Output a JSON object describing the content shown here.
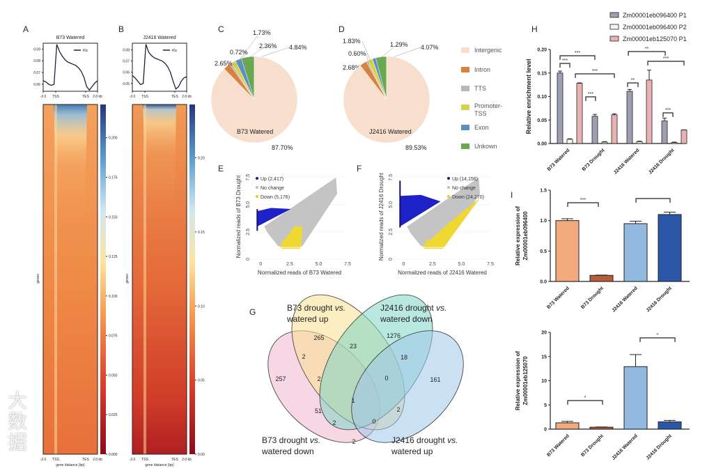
{
  "watermark": "大数据",
  "chart_data": [
    {
      "panel": "A",
      "type": "line",
      "title": "B73 Watered",
      "legend": "Kls",
      "ylim": [
        0.054,
        0.095
      ],
      "yticks": [
        "0.09",
        "0.08",
        "0.07",
        "0.06"
      ],
      "ytick_values": [
        0.09,
        0.08,
        0.07,
        0.06
      ],
      "xticks": [
        "-2.0",
        "TSS",
        "TES",
        "2.0 kb"
      ],
      "profile": [
        0.063,
        0.062,
        0.06,
        0.059,
        0.06,
        0.094,
        0.088,
        0.084,
        0.081,
        0.079,
        0.078,
        0.077,
        0.076,
        0.074,
        0.071,
        0.066,
        0.058,
        0.055,
        0.058,
        0.061,
        0.063
      ],
      "heatmap": {
        "ylabel": "genes",
        "xlabel": "gene distance (bp)",
        "xticks": [
          "-2.0",
          "TSS",
          "TES",
          "2.0 kb"
        ],
        "colorbar_ticks": [
          "0.200",
          "0.175",
          "0.150",
          "0.125",
          "0.100",
          "0.075",
          "0.050",
          "0.025",
          "0.000"
        ],
        "colorbar_values": [
          0.2,
          0.175,
          0.15,
          0.125,
          0.1,
          0.075,
          0.05,
          0.025,
          0
        ],
        "colorbar_max": 0.221
      }
    },
    {
      "panel": "B",
      "type": "line",
      "title": "J2416 Watered",
      "legend": "Kls",
      "ylim": [
        0.043,
        0.086
      ],
      "yticks": [
        "0.08",
        "0.07",
        "0.06",
        "0.05"
      ],
      "ytick_values": [
        0.08,
        0.07,
        0.06,
        0.05
      ],
      "xticks": [
        "-2.0",
        "TSS",
        "TES",
        "2.0 kb"
      ],
      "profile": [
        0.057,
        0.055,
        0.052,
        0.049,
        0.05,
        0.085,
        0.078,
        0.075,
        0.073,
        0.072,
        0.071,
        0.07,
        0.068,
        0.065,
        0.06,
        0.052,
        0.045,
        0.047,
        0.052,
        0.055,
        0.056
      ],
      "heatmap": {
        "ylabel": "genes",
        "xlabel": "gene distance (bp)",
        "xticks": [
          "-2.0",
          "TSS",
          "TES",
          "2.0 kb"
        ],
        "colorbar_ticks": [
          "0.20",
          "0.15",
          "0.10",
          "0.05",
          "0.00"
        ],
        "colorbar_values": [
          0.2,
          0.15,
          0.1,
          0.05,
          0
        ],
        "colorbar_max": 0.236
      }
    },
    {
      "panel": "C",
      "type": "pie",
      "title": "B73 Watered",
      "slices": [
        {
          "name": "Unkown",
          "value": 4.84,
          "label": "4.84%"
        },
        {
          "name": "Exon",
          "value": 2.36,
          "label": "2.36%"
        },
        {
          "name": "Promoter-TSS",
          "value": 1.73,
          "label": "1.73%"
        },
        {
          "name": "TTS",
          "value": 0.72,
          "label": "0.72%"
        },
        {
          "name": "Intron",
          "value": 2.65,
          "label": "2.65%"
        },
        {
          "name": "Intergenic",
          "value": 87.7,
          "label": "87.70%"
        }
      ]
    },
    {
      "panel": "D",
      "type": "pie",
      "title": "J2416 Watered",
      "slices": [
        {
          "name": "Unkown",
          "value": 4.07,
          "label": "4.07%"
        },
        {
          "name": "Exon",
          "value": 1.29,
          "label": "1.29%"
        },
        {
          "name": "Promoter-TSS",
          "value": 1.83,
          "label": "1.83%"
        },
        {
          "name": "TTS",
          "value": 0.6,
          "label": "0.60%"
        },
        {
          "name": "Intron",
          "value": 2.68,
          "label": "2.68%"
        },
        {
          "name": "Intergenic",
          "value": 89.53,
          "label": "89.53%"
        }
      ],
      "legend": [
        {
          "name": "Intergenic",
          "color": "#f7decd"
        },
        {
          "name": "Intron",
          "color": "#d98240"
        },
        {
          "name": "TTS",
          "color": "#b8b8b8"
        },
        {
          "name": "Promoter-TSS",
          "color": "#d6d24a"
        },
        {
          "name": "Exon",
          "color": "#5b8fc6"
        },
        {
          "name": "Unkown",
          "color": "#6aa84f"
        }
      ]
    },
    {
      "panel": "E",
      "type": "scatter",
      "xlabel": "Normalized reads of B73 Watered",
      "ylabel": "Normalized reads of B73 Drought",
      "xlim": [
        -0.8,
        7.5
      ],
      "ylim": [
        0,
        7.8
      ],
      "ticks": [
        "0",
        "2.5",
        "5.0",
        "7.5"
      ],
      "tick_values": [
        0,
        2.5,
        5,
        7.5
      ],
      "legend": [
        {
          "label": "Up (2,417)",
          "color": "#1a1aa0"
        },
        {
          "label": "No change",
          "color": "#bdbdbd"
        },
        {
          "label": "Down (5,176)",
          "color": "#e8d020"
        }
      ]
    },
    {
      "panel": "F",
      "type": "scatter",
      "xlabel": "Normalized reads of J2416 Watered",
      "ylabel": "Normalized reads of J2416 Drought",
      "xlim": [
        -0.8,
        7.5
      ],
      "ylim": [
        0,
        7.8
      ],
      "ticks": [
        "0",
        "2.5",
        "5.0",
        "7.5"
      ],
      "tick_values": [
        0,
        2.5,
        5,
        7.5
      ],
      "legend": [
        {
          "label": "Up (14,156)",
          "color": "#1a1aa0"
        },
        {
          "label": "No change",
          "color": "#bdbdbd"
        },
        {
          "label": "Down  (24,270)",
          "color": "#e8d020"
        }
      ]
    },
    {
      "panel": "G",
      "type": "venn",
      "sets": [
        "B73 drought vs. watered up",
        "J2416 drought vs. watered down",
        "B73 drought vs. watered down",
        "J2416 drought vs. watered up"
      ],
      "set_labels": [
        [
          "B73 drought ",
          "vs.",
          "watered up"
        ],
        [
          "J2416 drought ",
          "vs.",
          "watered down"
        ],
        [
          "B73 drought ",
          "vs.",
          "watered down"
        ],
        [
          "J2416 drought ",
          "vs.",
          "watered up"
        ]
      ],
      "counts": [
        "265",
        "23",
        "1276",
        "2",
        "2",
        "0",
        "18",
        "257",
        "1",
        "161",
        "51",
        "2",
        "0",
        "2",
        "2"
      ]
    },
    {
      "panel": "H",
      "type": "bar",
      "ylabel": "Relative enrichment level",
      "ylim": [
        0,
        0.2
      ],
      "yticks": [
        "0.00",
        "0.05",
        "0.10",
        "0.15",
        "0.20"
      ],
      "ytick_values": [
        0,
        0.05,
        0.1,
        0.15,
        0.2
      ],
      "categories": [
        "B73 Watered",
        "B73 Drought",
        "J2416 Watered",
        "J2416 Drought"
      ],
      "series": [
        {
          "name": "Zm00001eb096400 P1",
          "color": "#9e9fb3",
          "values": [
            0.15,
            0.058,
            0.111,
            0.048
          ],
          "errors": [
            0.004,
            0.004,
            0.004,
            0.006
          ]
        },
        {
          "name": "Zm00001eb096400 P2",
          "color": "#f4f4ec",
          "values": [
            0.009,
            0.003,
            0.004,
            0.002
          ],
          "errors": [
            0.001,
            0.001,
            0.001,
            0.001
          ]
        },
        {
          "name": "Zm00001eb125070 P1",
          "color": "#e8b2b2",
          "values": [
            0.128,
            0.061,
            0.135,
            0.029
          ],
          "errors": [
            0.001,
            0.002,
            0.021,
            0.0
          ]
        }
      ],
      "significance": [
        "***",
        "***",
        "***",
        "***",
        "**",
        "***",
        "**",
        "***"
      ]
    },
    {
      "panel": "I",
      "type": "bar",
      "ylabel": [
        "Relative expression of",
        "Zm00001eb096400"
      ],
      "ylim": [
        0,
        1.5
      ],
      "yticks": [
        "0.0",
        "0.5",
        "1.0",
        "1.5"
      ],
      "ytick_values": [
        0,
        0.5,
        1.0,
        1.5
      ],
      "categories": [
        "B73 Watered",
        "B73 Drought",
        "J2416 Watered",
        "J2416 Drought"
      ],
      "values": [
        1.0,
        0.1,
        0.95,
        1.1
      ],
      "errors": [
        0.03,
        0.005,
        0.04,
        0.04
      ],
      "colors": [
        "#f2aa7c",
        "#b85c3e",
        "#93b9e1",
        "#2c57a8"
      ],
      "significance": [
        "***",
        ""
      ]
    },
    {
      "panel": "I2",
      "type": "bar",
      "ylabel": [
        "Relative expression of",
        "Zm00001eb125070"
      ],
      "ylim": [
        0,
        20
      ],
      "yticks": [
        "0",
        "5",
        "10",
        "15",
        "20"
      ],
      "ytick_values": [
        0,
        5,
        10,
        15,
        20
      ],
      "categories": [
        "B73 Watered",
        "B73 Drought",
        "J2416 Watered",
        "J2416 Drought"
      ],
      "values": [
        1.3,
        0.4,
        12.9,
        1.5
      ],
      "errors": [
        0.3,
        0.05,
        2.5,
        0.3
      ],
      "colors": [
        "#f2aa7c",
        "#b85c3e",
        "#93b9e1",
        "#2c57a8"
      ],
      "significance": [
        "*",
        "*"
      ]
    }
  ],
  "panel_letters": [
    "A",
    "B",
    "C",
    "D",
    "E",
    "F",
    "G",
    "H",
    "I"
  ]
}
